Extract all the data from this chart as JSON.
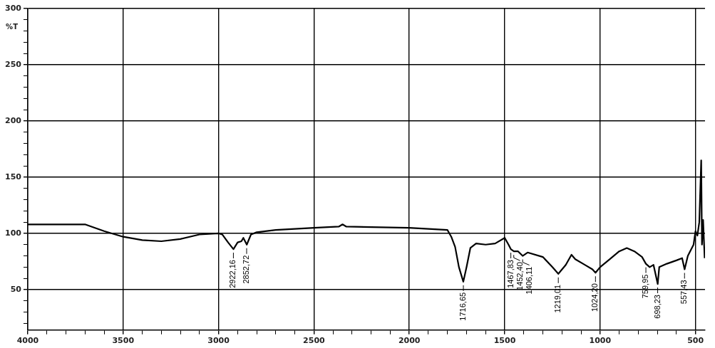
{
  "chart_data": {
    "type": "line",
    "ylabel": "%T",
    "xlim": [
      4000,
      450
    ],
    "ylim": [
      14,
      300
    ],
    "xticks": [
      4000,
      {
        "value": 3900,
        "label": null
      },
      {
        "value": 3800,
        "label": null
      },
      {
        "value": 3700,
        "label": null
      },
      {
        "value": 3600,
        "label": null
      },
      3500,
      {
        "value": 3400,
        "label": null
      },
      {
        "value": 3300,
        "label": null
      },
      {
        "value": 3200,
        "label": null
      },
      {
        "value": 3100,
        "label": null
      },
      3000,
      {
        "value": 2900,
        "label": null
      },
      {
        "value": 2800,
        "label": null
      },
      {
        "value": 2700,
        "label": null
      },
      {
        "value": 2600,
        "label": null
      },
      2500,
      {
        "value": 2400,
        "label": null
      },
      {
        "value": 2300,
        "label": null
      },
      {
        "value": 2200,
        "label": null
      },
      {
        "value": 2100,
        "label": null
      },
      2000,
      {
        "value": 1900,
        "label": null
      },
      {
        "value": 1800,
        "label": null
      },
      {
        "value": 1700,
        "label": null
      },
      {
        "value": 1600,
        "label": null
      },
      1500,
      {
        "value": 1400,
        "label": null
      },
      {
        "value": 1300,
        "label": null
      },
      {
        "value": 1200,
        "label": null
      },
      {
        "value": 1100,
        "label": null
      },
      1000,
      {
        "value": 900,
        "label": null
      },
      {
        "value": 800,
        "label": null
      },
      {
        "value": 700,
        "label": null
      },
      {
        "value": 600,
        "label": null
      },
      500
    ],
    "yticks": [
      {
        "value": 20,
        "label": null
      },
      {
        "value": 30,
        "label": null
      },
      {
        "value": 40,
        "label": null
      },
      50,
      {
        "value": 60,
        "label": null
      },
      {
        "value": 70,
        "label": null
      },
      {
        "value": 80,
        "label": null
      },
      {
        "value": 90,
        "label": null
      },
      100,
      {
        "value": 110,
        "label": null
      },
      {
        "value": 120,
        "label": null
      },
      {
        "value": 130,
        "label": null
      },
      {
        "value": 140,
        "label": null
      },
      150,
      {
        "value": 160,
        "label": null
      },
      {
        "value": 170,
        "label": null
      },
      {
        "value": 180,
        "label": null
      },
      {
        "value": 190,
        "label": null
      },
      200,
      {
        "value": 210,
        "label": null
      },
      {
        "value": 220,
        "label": null
      },
      {
        "value": 230,
        "label": null
      },
      {
        "value": 240,
        "label": null
      },
      250,
      {
        "value": 260,
        "label": null
      },
      {
        "value": 270,
        "label": null
      },
      {
        "value": 280,
        "label": null
      },
      {
        "value": 290,
        "label": null
      },
      300
    ],
    "grid": true,
    "legend": false,
    "marker": "none",
    "line_style": "solid",
    "x": [
      4000,
      3700,
      3600,
      3500,
      3400,
      3300,
      3200,
      3100,
      3000,
      2980,
      2950,
      2922,
      2900,
      2880,
      2870,
      2852,
      2830,
      2800,
      2700,
      2500,
      2370,
      2350,
      2330,
      2000,
      1800,
      1780,
      1760,
      1740,
      1717,
      1700,
      1680,
      1650,
      1600,
      1550,
      1500,
      1480,
      1468,
      1452,
      1430,
      1406,
      1380,
      1300,
      1250,
      1219,
      1180,
      1150,
      1130,
      1080,
      1040,
      1024,
      1000,
      950,
      900,
      860,
      820,
      780,
      760,
      740,
      720,
      698,
      690,
      650,
      600,
      570,
      557,
      540,
      510,
      500,
      490,
      480,
      470,
      466,
      460,
      452
    ],
    "series": [
      {
        "color": "#000000",
        "values": [
          108,
          108,
          102,
          97,
          94,
          93,
          95,
          99,
          100,
          99,
          92,
          86,
          92,
          93,
          96,
          90,
          99,
          101,
          103,
          105,
          106,
          108,
          106,
          105,
          103,
          97,
          88,
          70,
          57,
          70,
          87,
          91,
          90,
          91,
          96,
          90,
          86,
          84,
          84,
          80,
          83,
          79,
          70,
          64,
          72,
          81,
          77,
          72,
          68,
          65,
          70,
          77,
          84,
          87,
          84,
          79,
          73,
          70,
          72,
          55,
          70,
          73,
          76,
          78,
          68,
          80,
          90,
          102,
          98,
          110,
          165,
          90,
          112,
          78
        ]
      }
    ],
    "annotations": [
      {
        "text": "2922,16",
        "x": 2922.16,
        "y": 86
      },
      {
        "text": "2852,72",
        "x": 2852.72,
        "y": 90
      },
      {
        "text": "1716,65",
        "x": 1716.65,
        "y": 57
      },
      {
        "text": "1467,83",
        "x": 1467.83,
        "y": 86
      },
      {
        "text": "1452,40",
        "x": 1452.4,
        "y": 84
      },
      {
        "text": "1406,11",
        "x": 1406.11,
        "y": 80
      },
      {
        "text": "1219,01",
        "x": 1219.01,
        "y": 64
      },
      {
        "text": "1024,20",
        "x": 1024.2,
        "y": 65
      },
      {
        "text": "759,95",
        "x": 759.95,
        "y": 73
      },
      {
        "text": "698,23",
        "x": 698.23,
        "y": 55
      },
      {
        "text": "557,43",
        "x": 557.43,
        "y": 68
      }
    ]
  }
}
